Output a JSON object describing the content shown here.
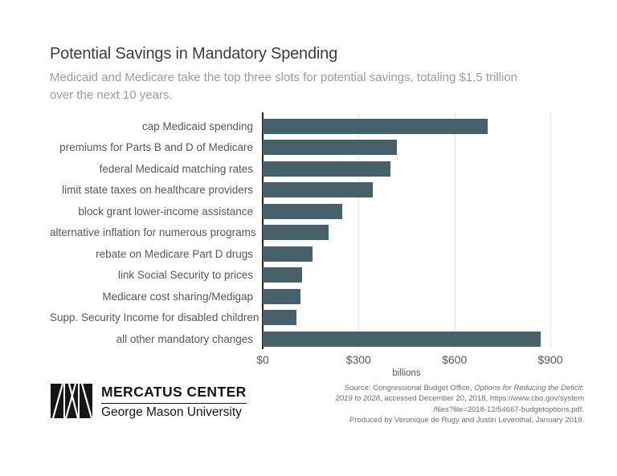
{
  "header": {
    "title": "Potential Savings in Mandatory Spending",
    "subtitle_line1": "Medicaid and Medicare take the top three slots for potential savings, totaling $1.5 trillion",
    "subtitle_line2": "over the next 10 years."
  },
  "chart_data": {
    "type": "bar",
    "orientation": "horizontal",
    "title": "Potential Savings in Mandatory Spending",
    "categories": [
      "cap Medicaid spending",
      "premiums for Parts B and D of Medicare",
      "federal Medicaid matching rates",
      "limit state taxes on healthcare providers",
      "block grant lower-income assistance",
      "alternative inflation for numerous programs",
      "rebate on Medicare Part D drugs",
      "link Social Security to prices",
      "Medicare cost sharing/Medigap",
      "Supp. Security Income for disabled children",
      "all other mandatory changes"
    ],
    "values": [
      705,
      420,
      400,
      345,
      250,
      205,
      155,
      122,
      118,
      105,
      870
    ],
    "xlabel": "billions",
    "xlim": [
      0,
      900
    ],
    "xticks": [
      {
        "label": "$0",
        "value": 0
      },
      {
        "label": "$300",
        "value": 300
      },
      {
        "label": "$600",
        "value": 600
      },
      {
        "label": "$900",
        "value": 900
      }
    ],
    "grid": true,
    "bar_color": "#47616b"
  },
  "footer": {
    "logo": {
      "org": "MERCATUS CENTER",
      "university": "George Mason University"
    },
    "source": {
      "lines": [
        {
          "segments": [
            {
              "t": "Source: Congressional Budget Office, ",
              "i": false
            },
            {
              "t": "Options for Reducing the Deficit:",
              "i": true
            }
          ]
        },
        {
          "segments": [
            {
              "t": "2019 to 2028",
              "i": true
            },
            {
              "t": ", accessed December 20, 2018, https://www.cbo.gov/system",
              "i": false
            }
          ]
        },
        {
          "segments": [
            {
              "t": "/files?file=2018-12/54667-budgetoptions.pdf.",
              "i": false
            }
          ]
        },
        {
          "segments": [
            {
              "t": "Produced by Veronique de Rugy and Justin Leventhal, January 2019.",
              "i": false
            }
          ]
        }
      ]
    }
  }
}
